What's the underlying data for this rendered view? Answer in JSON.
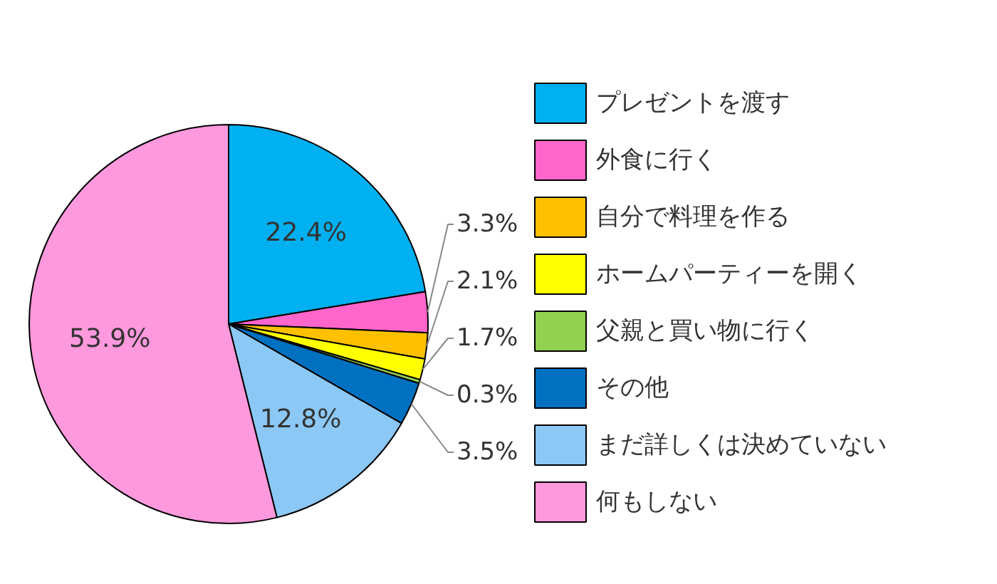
{
  "chart_data": {
    "type": "pie",
    "categories": [
      "プレゼントを渡す",
      "外食に行く",
      "自分で料理を作る",
      "ホームパーティーを開く",
      "父親と買い物に行く",
      "その他",
      "まだ詳しくは決めていない",
      "何もしない"
    ],
    "values": [
      22.4,
      3.3,
      2.1,
      1.7,
      0.3,
      3.5,
      12.8,
      53.9
    ],
    "value_labels": [
      "22.4%",
      "3.3%",
      "2.1%",
      "1.7%",
      "0.3%",
      "3.5%",
      "12.8%",
      "53.9%"
    ],
    "colors": [
      "#00b0f0",
      "#ff66cc",
      "#ffc000",
      "#ffff00",
      "#92d050",
      "#0070c0",
      "#8cc8f5",
      "#ff99dd"
    ],
    "legend": "right"
  }
}
